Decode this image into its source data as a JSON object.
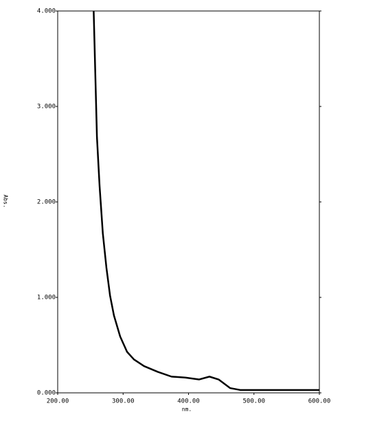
{
  "chart_data": {
    "type": "line",
    "x_label": "nm.",
    "y_label": "Abs.",
    "x": [
      255,
      260,
      264,
      269,
      274.5,
      280,
      286,
      295.5,
      306,
      316.5,
      332,
      353,
      374,
      395,
      416,
      432,
      446,
      463.5,
      479,
      532,
      600
    ],
    "series": [
      {
        "name": "Abs.",
        "color": "#000000",
        "values": [
          4.0,
          2.68,
          2.17,
          1.67,
          1.31,
          1.02,
          0.81,
          0.59,
          0.43,
          0.35,
          0.28,
          0.22,
          0.17,
          0.16,
          0.14,
          0.17,
          0.14,
          0.05,
          0.03,
          0.03,
          0.03
        ]
      }
    ],
    "xlim": [
      200,
      600
    ],
    "xticks": [
      {
        "value": 200,
        "label": "200.00"
      },
      {
        "value": 300,
        "label": "300.00"
      },
      {
        "value": 400,
        "label": "400.00"
      },
      {
        "value": 500,
        "label": "500.00"
      },
      {
        "value": 600,
        "label": "600.00"
      }
    ],
    "ylim": [
      0,
      4
    ],
    "yticks": [
      {
        "value": 0,
        "label": "0.000"
      },
      {
        "value": 1,
        "label": "1.000"
      },
      {
        "value": 2,
        "label": "2.000"
      },
      {
        "value": 3,
        "label": "3.000"
      },
      {
        "value": 4,
        "label": "4.000"
      }
    ],
    "grid": false
  }
}
